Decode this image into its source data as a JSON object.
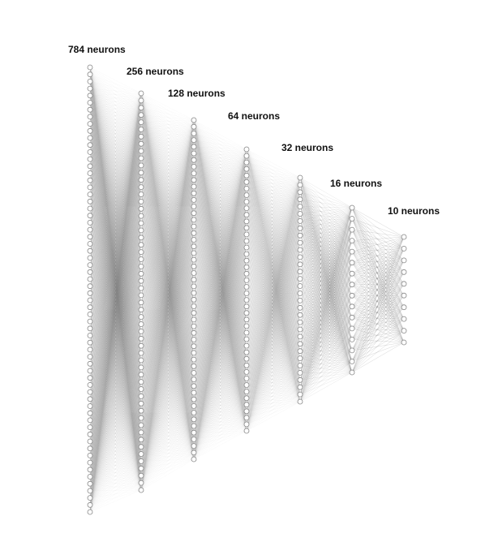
{
  "diagram": {
    "layers": [
      {
        "label": "784 neurons",
        "neurons": 784
      },
      {
        "label": "256 neurons",
        "neurons": 256
      },
      {
        "label": "128 neurons",
        "neurons": 128
      },
      {
        "label": "64 neurons",
        "neurons": 64
      },
      {
        "label": "32 neurons",
        "neurons": 32
      },
      {
        "label": "16 neurons",
        "neurons": 16
      },
      {
        "label": "10 neurons",
        "neurons": 10
      }
    ],
    "colors": {
      "edge": "#555555",
      "node_fill": "#ffffff",
      "node_stroke": "#888888",
      "background": "#ffffff"
    }
  }
}
